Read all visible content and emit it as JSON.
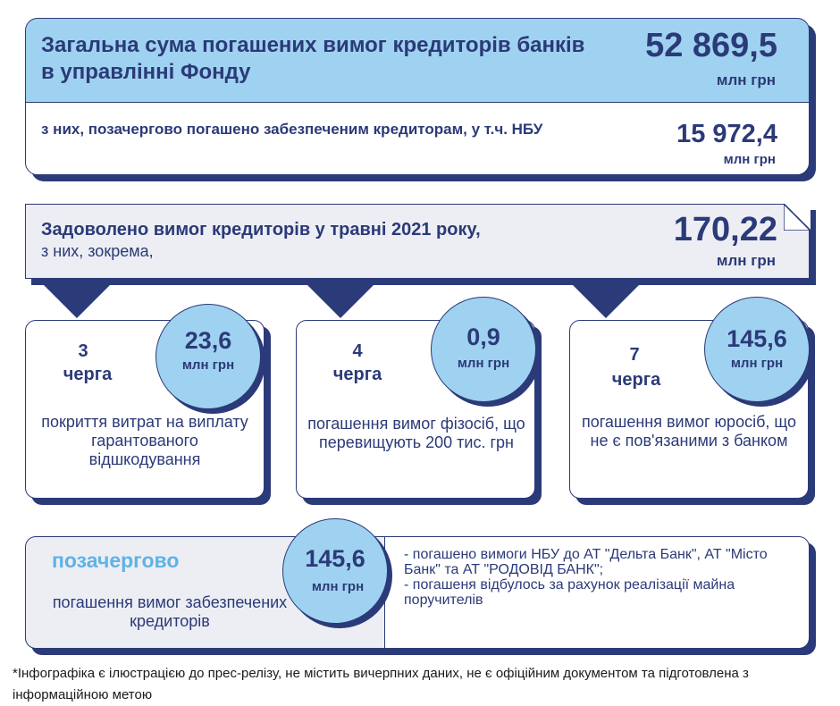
{
  "total": {
    "title": "Загальна сума погашених вимог кредиторів банків в управлінні Фонду",
    "value": "52 869,5",
    "unit": "млн грн"
  },
  "priority_secured": {
    "title": "з них, позачергово погашено забезпеченим кредиторам, у т.ч. НБУ",
    "value": "15 972,4",
    "unit": "млн грн"
  },
  "may_2021": {
    "title": "Задоволено вимог кредиторів у травні 2021 року,",
    "subtitle": "з них, зокрема,",
    "value": "170,22",
    "unit": "млн грн"
  },
  "categories": [
    {
      "queue_number": "3",
      "queue_word": "черга",
      "value": "23,6",
      "unit": "млн грн",
      "description": "покриття витрат на виплату гарантованого відшкодування"
    },
    {
      "queue_number": "4",
      "queue_word": "черга",
      "value": "0,9",
      "unit": "млн грн",
      "description": "погашення вимог фізосіб, що перевищують 200 тис. грн"
    },
    {
      "queue_number": "7",
      "queue_word": "черга",
      "value": "145,6",
      "unit": "млн грн",
      "description": "погашення вимог юросіб, що не є пов'язаними з банком"
    }
  ],
  "out_of_turn": {
    "title": "позачергово",
    "description": "погашення вимог забезпечених кредиторів",
    "value": "145,6",
    "unit": "млн грн",
    "notes": [
      "- погашено вимоги НБУ до АТ \"Дельта Банк\", АТ \"Місто Банк\" та АТ \"РОДОВІД БАНК\";",
      "- погашеня відбулось за рахунок реалізації майна поручителів"
    ]
  },
  "footnote": "*Інфографіка є ілюстрацією до прес-релізу, не містить вичерпних даних, не є офіційним документом та підготовлена з інформаційною метою",
  "colors": {
    "navy": "#2b3a78",
    "light_blue": "#9fd2f0",
    "accent_blue": "#5fb2e6",
    "panel_gray": "#eceef3"
  }
}
